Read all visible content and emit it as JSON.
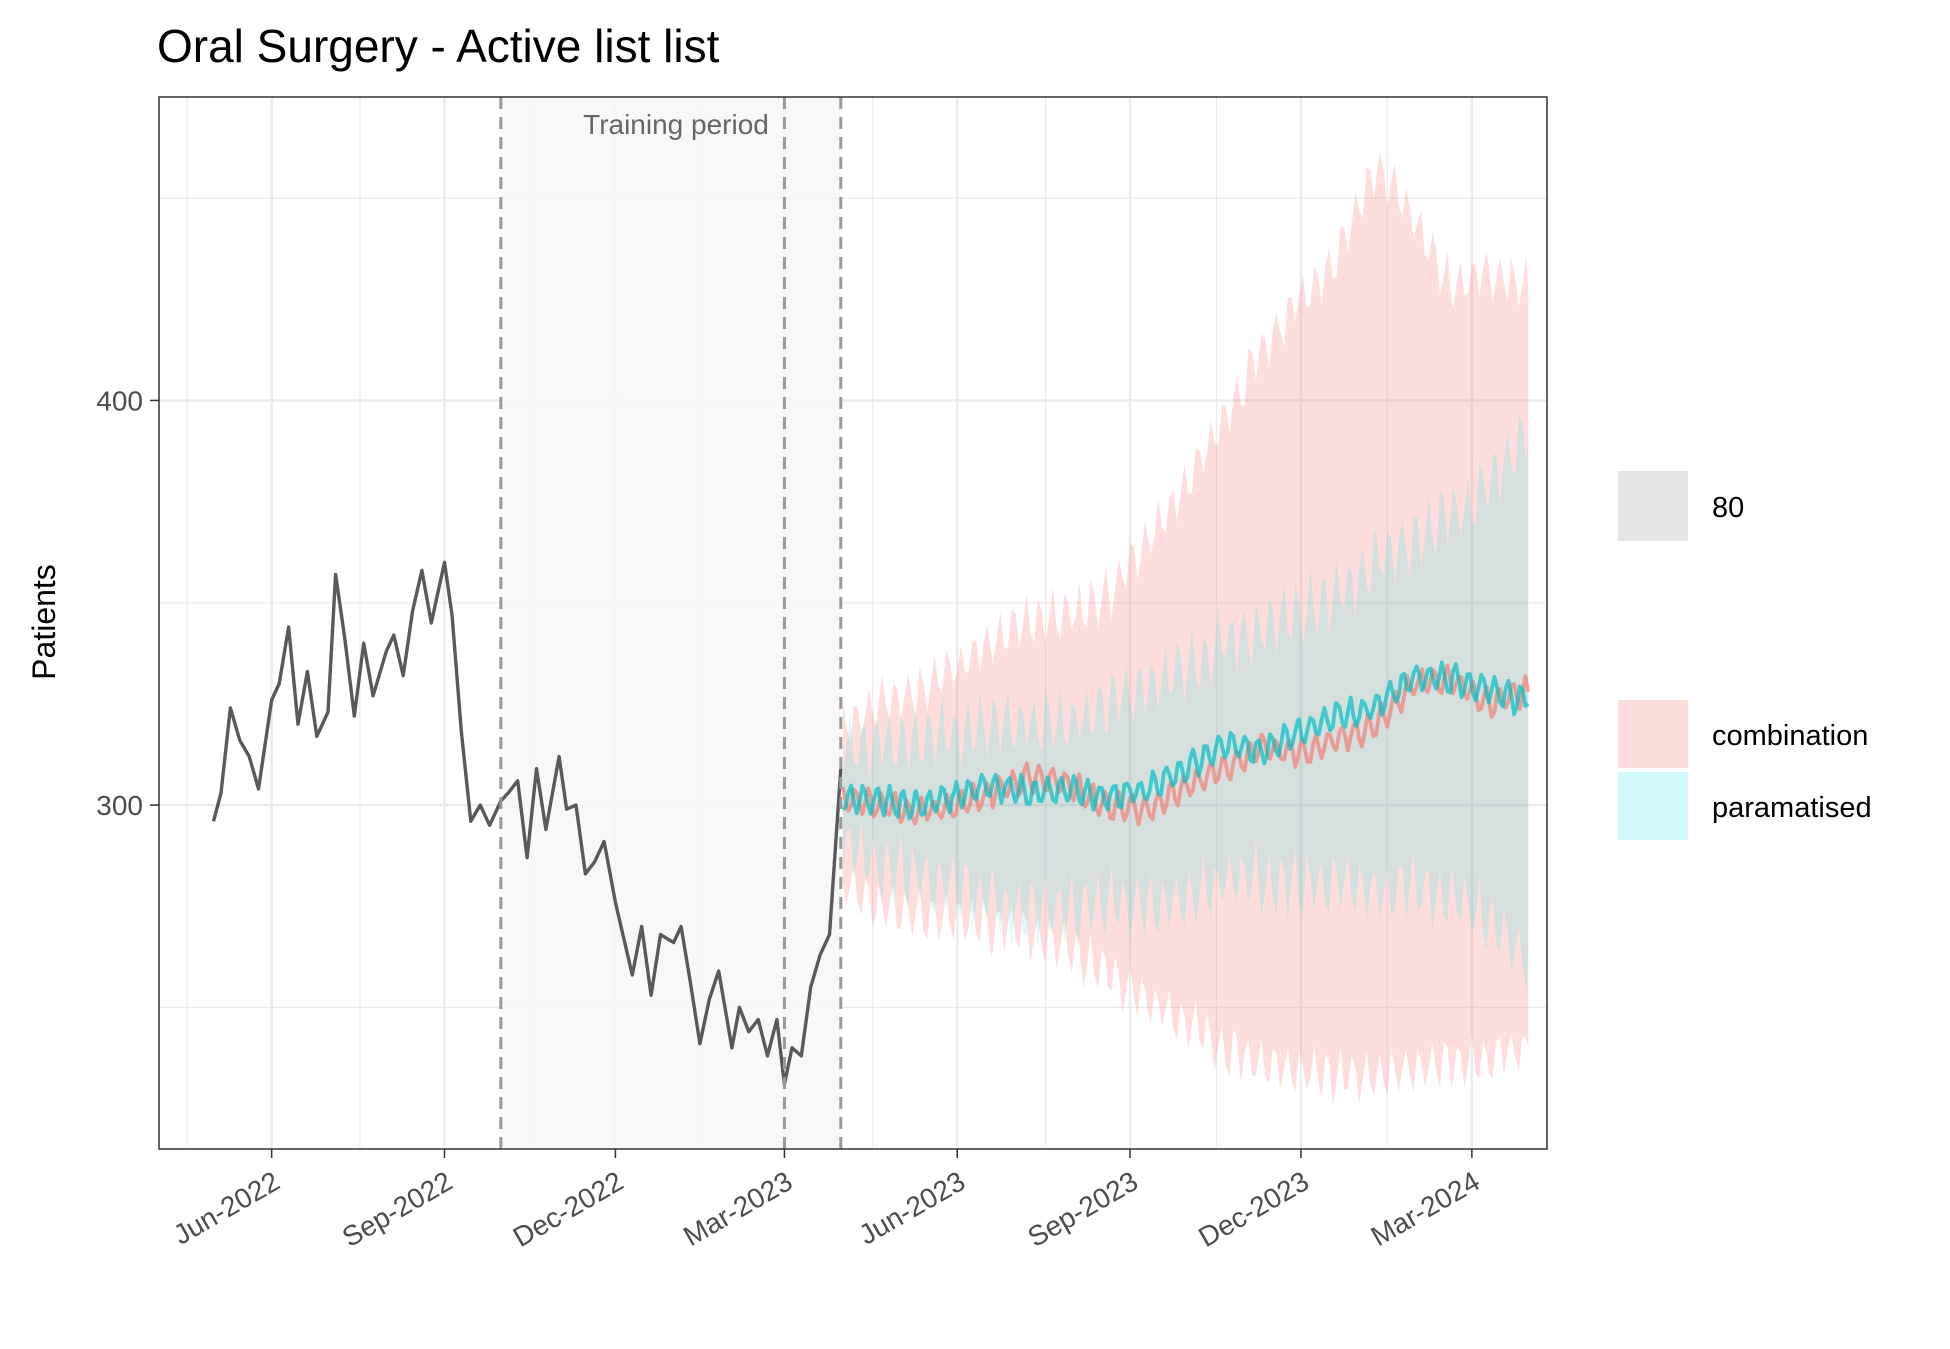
{
  "chart_data": {
    "type": "line",
    "title": "Oral Surgery - Active list list",
    "xlabel": "",
    "ylabel": "Patients",
    "ylim": [
      215,
      475
    ],
    "xlim": [
      "2022-04-02",
      "2024-04-10"
    ],
    "x_ticks": [
      "Jun-2022",
      "Sep-2022",
      "Dec-2022",
      "Mar-2023",
      "Jun-2023",
      "Sep-2023",
      "Dec-2023",
      "Mar-2024"
    ],
    "y_ticks": [
      300,
      400
    ],
    "grid": true,
    "legend_position": "right",
    "legend": {
      "interval_label": "80",
      "models": [
        "combination",
        "paramatised"
      ]
    },
    "training_period": {
      "label": "Training period",
      "start": "2022-10-01",
      "end": "2023-03-31",
      "extra_marker": "2023-03-01"
    },
    "history": {
      "x": [
        "2022-05-01",
        "2022-05-05",
        "2022-05-10",
        "2022-05-15",
        "2022-05-20",
        "2022-05-25",
        "2022-06-01",
        "2022-06-05",
        "2022-06-10",
        "2022-06-15",
        "2022-06-20",
        "2022-06-25",
        "2022-07-01",
        "2022-07-05",
        "2022-07-10",
        "2022-07-15",
        "2022-07-20",
        "2022-07-25",
        "2022-08-01",
        "2022-08-05",
        "2022-08-10",
        "2022-08-15",
        "2022-08-20",
        "2022-08-25",
        "2022-09-01",
        "2022-09-05",
        "2022-09-10",
        "2022-09-15",
        "2022-09-20",
        "2022-09-25",
        "2022-10-01",
        "2022-10-05",
        "2022-10-10",
        "2022-10-15",
        "2022-10-20",
        "2022-10-25",
        "2022-11-01",
        "2022-11-05",
        "2022-11-10",
        "2022-11-15",
        "2022-11-20",
        "2022-11-25",
        "2022-12-01",
        "2022-12-05",
        "2022-12-10",
        "2022-12-15",
        "2022-12-20",
        "2022-12-25",
        "2023-01-01",
        "2023-01-05",
        "2023-01-10",
        "2023-01-15",
        "2023-01-20",
        "2023-01-25",
        "2023-02-01",
        "2023-02-05",
        "2023-02-10",
        "2023-02-15",
        "2023-02-20",
        "2023-02-25",
        "2023-03-01",
        "2023-03-05",
        "2023-03-10",
        "2023-03-15",
        "2023-03-20",
        "2023-03-25",
        "2023-03-31"
      ],
      "y": [
        296,
        303,
        324,
        316,
        312,
        304,
        326,
        330,
        344,
        320,
        333,
        317,
        323,
        357,
        341,
        322,
        340,
        327,
        338,
        342,
        332,
        348,
        358,
        345,
        360,
        347,
        318,
        296,
        300,
        295,
        301,
        303,
        306,
        287,
        309,
        294,
        312,
        299,
        300,
        283,
        286,
        291,
        276,
        268,
        258,
        270,
        253,
        268,
        266,
        270,
        256,
        241,
        252,
        259,
        240,
        250,
        244,
        247,
        238,
        247,
        231,
        240,
        238,
        255,
        263,
        268,
        309
      ]
    },
    "series": [
      {
        "name": "combination",
        "color": "#F8766D",
        "x": [
          "2023-04-01",
          "2023-04-20",
          "2023-05-10",
          "2023-05-30",
          "2023-06-20",
          "2023-07-10",
          "2023-07-30",
          "2023-08-20",
          "2023-09-10",
          "2023-09-30",
          "2023-10-20",
          "2023-11-10",
          "2023-11-30",
          "2023-12-20",
          "2024-01-10",
          "2024-01-30",
          "2024-02-20",
          "2024-03-10",
          "2024-03-31"
        ],
        "values": [
          301,
          300,
          298,
          300,
          303,
          307,
          305,
          300,
          299,
          304,
          309,
          314,
          313,
          316,
          320,
          330,
          331,
          325,
          328
        ],
        "lower": [
          280,
          275,
          272,
          272,
          270,
          268,
          264,
          258,
          252,
          246,
          240,
          236,
          234,
          233,
          233,
          235,
          237,
          238,
          240
        ],
        "upper": [
          320,
          325,
          328,
          334,
          340,
          346,
          347,
          352,
          365,
          378,
          395,
          412,
          425,
          435,
          458,
          445,
          428,
          432,
          428
        ]
      },
      {
        "name": "paramatised",
        "color": "#00BFC4",
        "x": [
          "2023-04-01",
          "2023-04-20",
          "2023-05-10",
          "2023-05-30",
          "2023-06-20",
          "2023-07-10",
          "2023-07-30",
          "2023-08-20",
          "2023-09-10",
          "2023-09-30",
          "2023-10-20",
          "2023-11-10",
          "2023-11-30",
          "2023-12-20",
          "2024-01-10",
          "2024-01-30",
          "2024-02-20",
          "2024-03-10",
          "2024-03-31"
        ],
        "values": [
          302,
          301,
          300,
          302,
          305,
          303,
          304,
          302,
          304,
          309,
          315,
          313,
          318,
          322,
          324,
          332,
          331,
          329,
          325
        ],
        "lower": [
          290,
          285,
          282,
          280,
          276,
          274,
          274,
          276,
          275,
          276,
          282,
          282,
          280,
          280,
          278,
          280,
          276,
          272,
          262
        ],
        "upper": [
          313,
          315,
          316,
          318,
          320,
          320,
          321,
          324,
          330,
          335,
          340,
          343,
          348,
          352,
          360,
          365,
          372,
          380,
          392
        ]
      }
    ],
    "colors": {
      "history": "#595959",
      "interval_fill": "#e5e5e5",
      "training_shade": "#f7f7f7",
      "grid": "#ebebeb",
      "panel_border": "#333333"
    }
  }
}
